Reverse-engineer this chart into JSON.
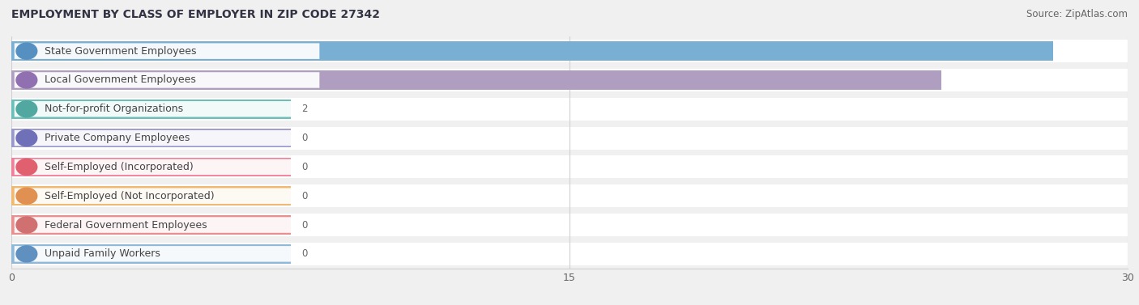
{
  "title": "EMPLOYMENT BY CLASS OF EMPLOYER IN ZIP CODE 27342",
  "source": "Source: ZipAtlas.com",
  "categories": [
    "State Government Employees",
    "Local Government Employees",
    "Not-for-profit Organizations",
    "Private Company Employees",
    "Self-Employed (Incorporated)",
    "Self-Employed (Not Incorporated)",
    "Federal Government Employees",
    "Unpaid Family Workers"
  ],
  "values": [
    28,
    25,
    2,
    0,
    0,
    0,
    0,
    0
  ],
  "bar_colors": [
    "#7aafd4",
    "#b09ec0",
    "#6bbfb8",
    "#9898cc",
    "#f08098",
    "#f0b870",
    "#e89090",
    "#90b8d8"
  ],
  "dot_colors": [
    "#5590c0",
    "#9070b0",
    "#50a8a0",
    "#7070b8",
    "#e06070",
    "#e09050",
    "#d07070",
    "#6090c0"
  ],
  "label_bg_color": "#ffffff",
  "xlim": [
    0,
    30
  ],
  "xticks": [
    0,
    15,
    30
  ],
  "value_labels_inside": [
    true,
    true,
    false,
    false,
    false,
    false,
    false,
    false
  ],
  "value_label_color_inside": "#ffffff",
  "value_label_color_outside": "#666666",
  "background_color": "#f0f0f0",
  "row_bg_color": "#ffffff",
  "row_sep_color": "#e0e0e0",
  "grid_color": "#d0d0d0",
  "title_fontsize": 10,
  "source_fontsize": 8.5,
  "bar_label_fontsize": 9,
  "value_fontsize": 8.5,
  "min_bar_width": 7.5
}
